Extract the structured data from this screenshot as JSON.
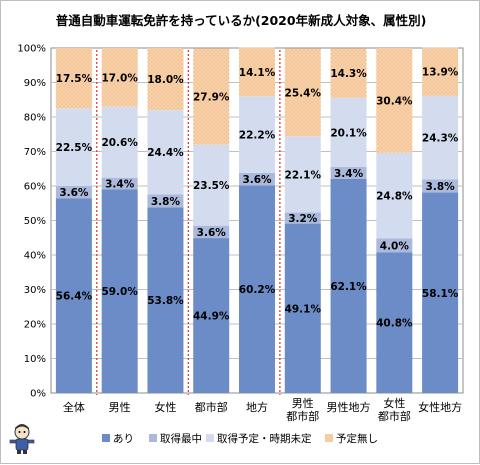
{
  "chart_data": {
    "type": "bar",
    "stacked": true,
    "percent": true,
    "title": "普通自動車運転免許を持っているか(2020年新成人対象、属性別)",
    "categories": [
      [
        "全体"
      ],
      [
        "男性"
      ],
      [
        "女性"
      ],
      [
        "都市部"
      ],
      [
        "地方"
      ],
      [
        "男性",
        "都市部"
      ],
      [
        "男性地方"
      ],
      [
        "女性",
        "都市部"
      ],
      [
        "女性地方"
      ]
    ],
    "series": [
      {
        "name": "あり",
        "color": "#6b8cc7",
        "values": [
          56.4,
          59.0,
          53.8,
          44.9,
          60.2,
          49.1,
          62.1,
          40.8,
          58.1
        ]
      },
      {
        "name": "取得最中",
        "color": "#aab9dc",
        "values": [
          3.6,
          3.4,
          3.8,
          3.6,
          3.6,
          3.2,
          3.4,
          4.0,
          3.8
        ]
      },
      {
        "name": "取得予定・時期未定",
        "color": "#d2dcee",
        "values": [
          22.5,
          20.6,
          24.4,
          23.5,
          22.2,
          22.1,
          20.1,
          24.8,
          24.3
        ]
      },
      {
        "name": "予定無し",
        "color": "#f5c596",
        "values": [
          17.5,
          17.0,
          18.0,
          27.9,
          14.1,
          25.4,
          14.3,
          30.4,
          13.9
        ]
      }
    ],
    "y_ticks": [
      "0%",
      "10%",
      "20%",
      "30%",
      "40%",
      "50%",
      "60%",
      "70%",
      "80%",
      "90%",
      "100%"
    ],
    "ylim": [
      0,
      100
    ],
    "grid": true,
    "legend_position": "bottom",
    "group_separators_after": [
      0,
      2,
      4
    ],
    "separator_color": "#d9302c"
  }
}
